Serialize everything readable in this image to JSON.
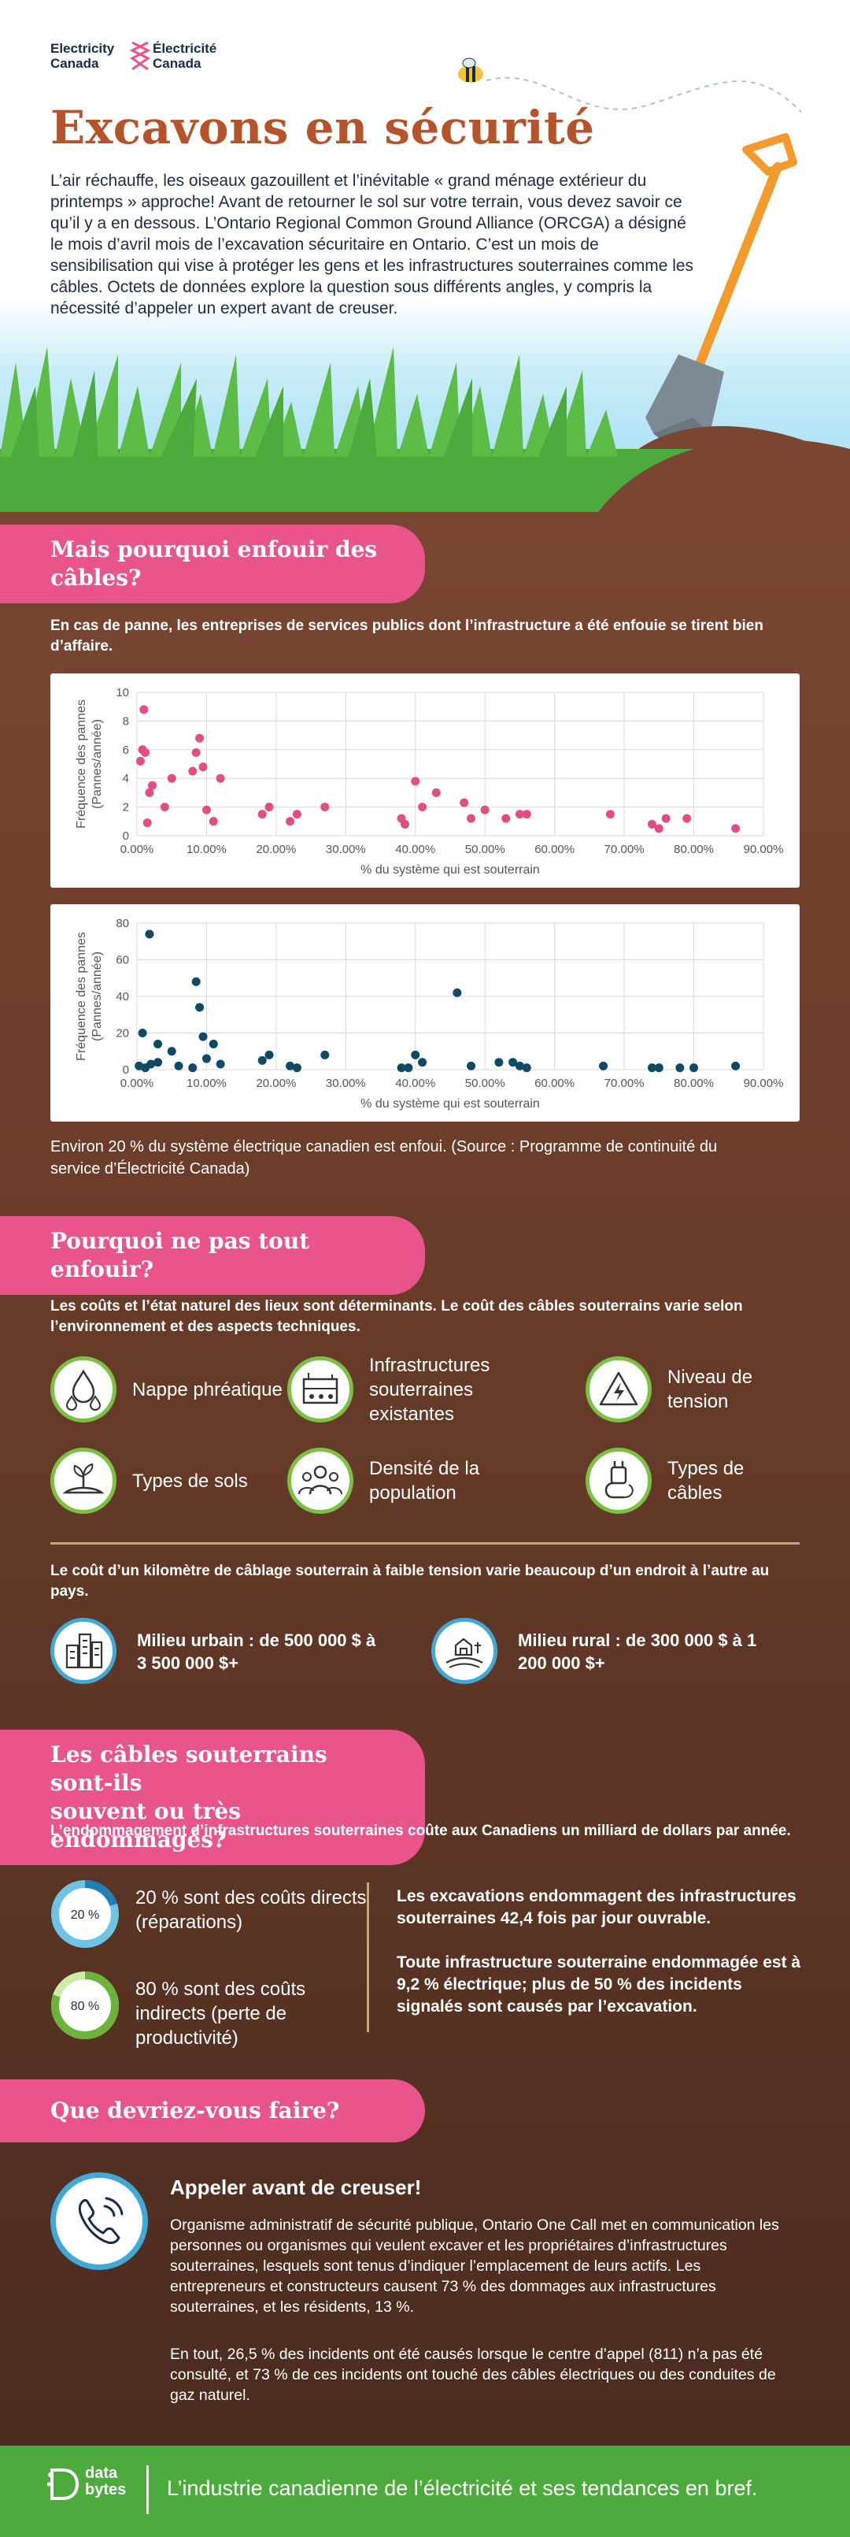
{
  "header": {
    "logo_en_line1": "Electricity",
    "logo_en_line2": "Canada",
    "logo_fr_line1": "Électricité",
    "logo_fr_line2": "Canada",
    "title": "Excavons en sécurité",
    "intro": "L’air réchauffe, les oiseaux gazouillent et l’inévitable « grand ménage extérieur du printemps » approche! Avant de retourner le sol sur votre terrain, vous devez savoir ce qu’il y a en dessous. L’Ontario Regional Common Ground Alliance (ORCGA) a désigné le mois d’avril mois de l’excavation sécuritaire en Ontario. C’est un mois de sensibilisation qui vise à protéger les gens et les infrastructures souterraines comme les câbles. Octets de données explore la question sous différents angles, y compris la nécessité d’appeler un expert avant de creuser."
  },
  "section1": {
    "heading_line1": "Mais pourquoi enfouir des",
    "heading_line2": "câbles?",
    "lead": "En cas de panne, les entreprises de services publics dont l’infrastructure a été enfouie se tirent bien d’affaire.",
    "source_note": "Environ 20 % du système électrique canadien est enfoui. (Source : Programme de continuité du service d’Électricité Canada)"
  },
  "chart_data": [
    {
      "type": "scatter",
      "ylabel_line1": "Fréquence des pannes",
      "ylabel_line2": "(Pannes/année)",
      "xlabel": "% du système qui est souterrain",
      "xlim": [
        0,
        0.9
      ],
      "ylim": [
        0,
        10
      ],
      "x_ticks": [
        "0.00%",
        "10.00%",
        "20.00%",
        "30.00%",
        "40.00%",
        "50.00%",
        "60.00%",
        "70.00%",
        "80.00%",
        "90.00%"
      ],
      "y_ticks": [
        "0",
        "2",
        "4",
        "6",
        "8",
        "10"
      ],
      "color": "#e44d84",
      "points": [
        [
          0.005,
          5.2
        ],
        [
          0.008,
          6.0
        ],
        [
          0.01,
          8.8
        ],
        [
          0.012,
          5.8
        ],
        [
          0.015,
          0.9
        ],
        [
          0.018,
          3.0
        ],
        [
          0.022,
          3.5
        ],
        [
          0.04,
          2.0
        ],
        [
          0.05,
          4.0
        ],
        [
          0.08,
          4.5
        ],
        [
          0.085,
          5.8
        ],
        [
          0.09,
          6.8
        ],
        [
          0.095,
          4.8
        ],
        [
          0.1,
          1.8
        ],
        [
          0.11,
          1.0
        ],
        [
          0.12,
          4.0
        ],
        [
          0.18,
          1.5
        ],
        [
          0.19,
          2.0
        ],
        [
          0.22,
          1.0
        ],
        [
          0.23,
          1.5
        ],
        [
          0.27,
          2.0
        ],
        [
          0.38,
          1.2
        ],
        [
          0.385,
          0.8
        ],
        [
          0.4,
          3.8
        ],
        [
          0.41,
          2.0
        ],
        [
          0.43,
          3.0
        ],
        [
          0.47,
          2.3
        ],
        [
          0.48,
          1.2
        ],
        [
          0.5,
          1.8
        ],
        [
          0.53,
          1.2
        ],
        [
          0.55,
          1.5
        ],
        [
          0.56,
          1.5
        ],
        [
          0.68,
          1.5
        ],
        [
          0.74,
          0.8
        ],
        [
          0.75,
          0.5
        ],
        [
          0.76,
          1.2
        ],
        [
          0.79,
          1.2
        ],
        [
          0.86,
          0.5
        ]
      ]
    },
    {
      "type": "scatter",
      "ylabel_line1": "Fréquence des pannes",
      "ylabel_line2": "(Pannes/année)",
      "xlabel": "% du système qui est souterrain",
      "xlim": [
        0,
        0.9
      ],
      "ylim": [
        0,
        80
      ],
      "x_ticks": [
        "0.00%",
        "10.00%",
        "20.00%",
        "30.00%",
        "40.00%",
        "50.00%",
        "60.00%",
        "70.00%",
        "80.00%",
        "90.00%"
      ],
      "y_ticks": [
        "0",
        "20",
        "40",
        "60",
        "80"
      ],
      "color": "#0e4a63",
      "points": [
        [
          0.003,
          2
        ],
        [
          0.008,
          20
        ],
        [
          0.012,
          1
        ],
        [
          0.018,
          74
        ],
        [
          0.02,
          3
        ],
        [
          0.03,
          4
        ],
        [
          0.03,
          14
        ],
        [
          0.05,
          10
        ],
        [
          0.06,
          2
        ],
        [
          0.08,
          1
        ],
        [
          0.085,
          48
        ],
        [
          0.09,
          34
        ],
        [
          0.095,
          18
        ],
        [
          0.1,
          6
        ],
        [
          0.11,
          14
        ],
        [
          0.12,
          3
        ],
        [
          0.18,
          5
        ],
        [
          0.19,
          8
        ],
        [
          0.22,
          2
        ],
        [
          0.23,
          1
        ],
        [
          0.27,
          8
        ],
        [
          0.38,
          1
        ],
        [
          0.39,
          1
        ],
        [
          0.4,
          8
        ],
        [
          0.41,
          4
        ],
        [
          0.46,
          42
        ],
        [
          0.48,
          2
        ],
        [
          0.52,
          4
        ],
        [
          0.54,
          4
        ],
        [
          0.55,
          2
        ],
        [
          0.56,
          1
        ],
        [
          0.67,
          2
        ],
        [
          0.74,
          1
        ],
        [
          0.75,
          1
        ],
        [
          0.78,
          1
        ],
        [
          0.8,
          1
        ],
        [
          0.86,
          2
        ]
      ]
    }
  ],
  "section2": {
    "heading_line1": "Pourquoi ne pas tout",
    "heading_line2": "enfouir?",
    "lead": "Les coûts et l’état naturel des lieux sont déterminants. Le coût des câbles souterrains varie selon l’environnement et des aspects techniques.",
    "factors": [
      {
        "icon": "water-drops-icon",
        "label": "Nappe phréatique"
      },
      {
        "icon": "underground-infrastructure-icon",
        "label": "Infrastructures souterraines existantes"
      },
      {
        "icon": "high-voltage-icon",
        "label": "Niveau de tension"
      },
      {
        "icon": "soil-sprout-icon",
        "label": "Types de sols"
      },
      {
        "icon": "population-icon",
        "label": "Densité de la population"
      },
      {
        "icon": "cable-plug-icon",
        "label": "Types de câbles"
      }
    ],
    "cost_lead": "Le coût d’un kilomètre de câblage souterrain à faible tension varie beaucoup d’un endroit à l’autre au pays.",
    "urban": {
      "icon": "city-buildings-icon",
      "label": "Milieu urbain : de 500 000 $ à 3 500 000 $+"
    },
    "rural": {
      "icon": "farm-barn-icon",
      "label": "Milieu rural : de 300 000 $ à 1 200 000 $+"
    }
  },
  "section3": {
    "heading_line1": "Les câbles souterrains sont-ils",
    "heading_line2": "souvent ou très endommagés?",
    "lead": "L’endommagement d’infrastructures souterraines coûte aux Canadiens un milliard de dollars par année.",
    "direct": {
      "pct_label": "20 %",
      "fraction": 0.2,
      "label": "20 % sont des coûts directs (réparations)"
    },
    "indirect": {
      "pct_label": "80 %",
      "fraction": 0.8,
      "label": "80 % sont des coûts indirects (perte de productivité)"
    },
    "callout1": "Les excavations endommagent des infrastructures souterraines 42,4 fois par jour ouvrable.",
    "callout2": "Toute infrastructure souterraine endommagée est à 9,2 % électrique; plus de 50 % des incidents signalés sont causés par l’excavation."
  },
  "section4": {
    "heading": "Que devriez-vous faire?",
    "call_title": "Appeler avant de creuser!",
    "call_text1": "Organisme administratif de sécurité publique, Ontario One Call met en communication les personnes ou organismes qui veulent excaver et les propriétaires d’infrastructures souterraines, lesquels sont tenus d’indiquer l’emplacement de leurs actifs. Les entrepreneurs et constructeurs causent 73 % des dommages aux infrastructures souterraines, et les résidents, 13 %.",
    "call_text2": "En tout, 26,5 % des incidents ont été causés lorsque le centre d’appel (811) n’a pas été consulté, et 73 % de ces incidents ont touché des câbles électriques ou des conduites de gaz naturel."
  },
  "footer": {
    "brand_line1": "data",
    "brand_line2": "bytes",
    "tagline": "L’industrie canadienne de l’électricité et ses tendances en bref."
  },
  "colors": {
    "title": "#b5542a",
    "pill": "#e9548c",
    "green": "#7bc143",
    "blue": "#3fa9d8",
    "footer": "#4cab3c"
  }
}
